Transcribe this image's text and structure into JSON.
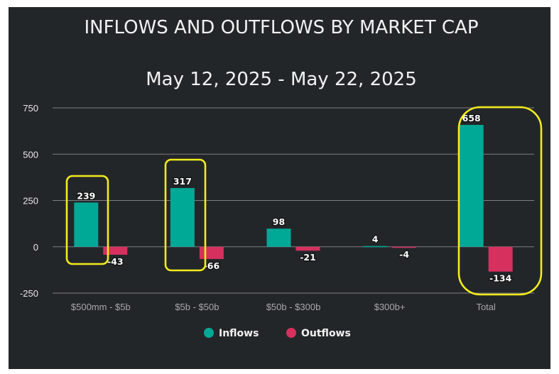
{
  "chart_data": {
    "type": "bar",
    "title": "INFLOWS AND OUTFLOWS BY MARKET CAP",
    "subtitle": "May 12, 2025 - May 22, 2025",
    "categories": [
      "$500mm - $5b",
      "$5b - $50b",
      "$50b - $300b",
      "$300b+",
      "Total"
    ],
    "series": [
      {
        "name": "Inflows",
        "values": [
          239,
          317,
          98,
          4,
          658
        ],
        "labels": [
          "239",
          "317",
          "98",
          "4",
          "658"
        ],
        "color": "#00a896"
      },
      {
        "name": "Outflows",
        "values": [
          -43,
          -66,
          -21,
          -4,
          -134
        ],
        "labels": [
          "-43",
          "-66",
          "-21",
          "-4",
          "-134"
        ],
        "color": "#d6305f"
      }
    ],
    "ylim": [
      -250,
      750
    ],
    "yticks": [
      750,
      500,
      250,
      0,
      -250
    ],
    "ytick_labels": [
      "750",
      "500",
      "250",
      "0",
      "-250"
    ],
    "grid": true,
    "legend": "bottom-center",
    "highlight_color": "#f2ec1c",
    "highlighted_categories": [
      "$500mm - $5b",
      "$5b - $50b",
      "Total"
    ]
  }
}
